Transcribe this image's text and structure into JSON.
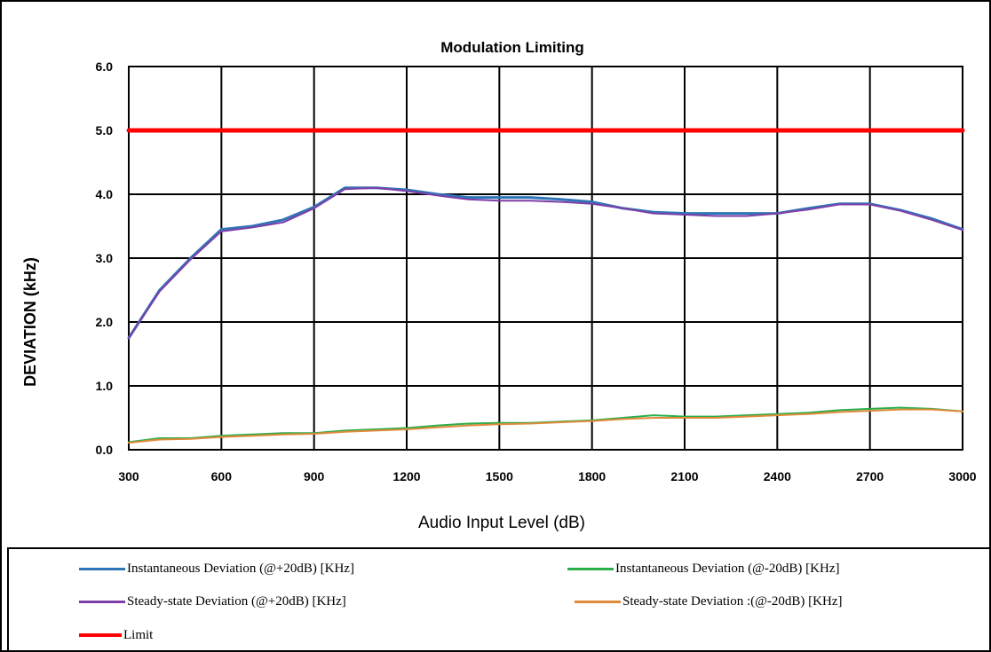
{
  "chart_data": {
    "type": "line",
    "title": "Modulation Limiting",
    "xlabel": "Audio Input Level (dB)",
    "ylabel": "DEVIATION (kHz)",
    "xlim": [
      300,
      3000
    ],
    "ylim": [
      0,
      6
    ],
    "x_ticks": [
      "300",
      "600",
      "900",
      "1200",
      "1500",
      "1800",
      "2100",
      "2400",
      "2700",
      "3000"
    ],
    "y_ticks": [
      "0.0",
      "1.0",
      "2.0",
      "3.0",
      "4.0",
      "5.0",
      "6.0"
    ],
    "grid": true,
    "legend_position": "bottom",
    "series": [
      {
        "name": "Instantaneous Deviation (@+20dB) [KHz]",
        "color": "#2E75B6",
        "x": [
          300,
          400,
          500,
          600,
          700,
          800,
          900,
          1000,
          1100,
          1200,
          1300,
          1400,
          1500,
          1600,
          1700,
          1800,
          1900,
          2000,
          2100,
          2200,
          2300,
          2400,
          2500,
          2600,
          2700,
          2800,
          2900,
          3000
        ],
        "y": [
          1.75,
          2.5,
          3.0,
          3.45,
          3.5,
          3.6,
          3.8,
          4.1,
          4.1,
          4.07,
          4.0,
          3.95,
          3.95,
          3.95,
          3.92,
          3.88,
          3.78,
          3.72,
          3.7,
          3.7,
          3.7,
          3.7,
          3.78,
          3.85,
          3.85,
          3.75,
          3.62,
          3.45
        ]
      },
      {
        "name": "Instantaneous Deviation (@-20dB) [KHz]",
        "color": "#2BAE4A",
        "x": [
          300,
          400,
          500,
          600,
          700,
          800,
          900,
          1000,
          1100,
          1200,
          1300,
          1400,
          1500,
          1600,
          1700,
          1800,
          1900,
          2000,
          2100,
          2200,
          2300,
          2400,
          2500,
          2600,
          2700,
          2800,
          2900,
          3000
        ],
        "y": [
          0.12,
          0.18,
          0.18,
          0.22,
          0.24,
          0.26,
          0.26,
          0.3,
          0.32,
          0.34,
          0.38,
          0.41,
          0.42,
          0.42,
          0.44,
          0.46,
          0.5,
          0.54,
          0.52,
          0.52,
          0.54,
          0.56,
          0.58,
          0.62,
          0.64,
          0.66,
          0.64,
          0.6
        ]
      },
      {
        "name": "Steady-state Deviation (@+20dB) [KHz]",
        "color": "#7E3FA8",
        "x": [
          300,
          400,
          500,
          600,
          700,
          800,
          900,
          1000,
          1100,
          1200,
          1300,
          1400,
          1500,
          1600,
          1700,
          1800,
          1900,
          2000,
          2100,
          2200,
          2300,
          2400,
          2500,
          2600,
          2700,
          2800,
          2900,
          3000
        ],
        "y": [
          1.75,
          2.48,
          2.98,
          3.42,
          3.48,
          3.56,
          3.78,
          4.08,
          4.1,
          4.05,
          3.98,
          3.92,
          3.9,
          3.9,
          3.88,
          3.85,
          3.78,
          3.7,
          3.68,
          3.66,
          3.66,
          3.7,
          3.76,
          3.84,
          3.84,
          3.74,
          3.6,
          3.44
        ]
      },
      {
        "name": "Steady-state Deviation :(@-20dB) [KHz]",
        "color": "#E08A3C",
        "x": [
          300,
          400,
          500,
          600,
          700,
          800,
          900,
          1000,
          1100,
          1200,
          1300,
          1400,
          1500,
          1600,
          1700,
          1800,
          1900,
          2000,
          2100,
          2200,
          2300,
          2400,
          2500,
          2600,
          2700,
          2800,
          2900,
          3000
        ],
        "y": [
          0.11,
          0.16,
          0.17,
          0.2,
          0.22,
          0.24,
          0.25,
          0.28,
          0.3,
          0.32,
          0.35,
          0.38,
          0.4,
          0.41,
          0.43,
          0.45,
          0.48,
          0.5,
          0.5,
          0.5,
          0.52,
          0.54,
          0.56,
          0.59,
          0.61,
          0.63,
          0.63,
          0.6
        ]
      },
      {
        "name": "Limit",
        "color": "#FF0000",
        "x": [
          300,
          3000
        ],
        "y": [
          5.0,
          5.0
        ]
      }
    ]
  }
}
